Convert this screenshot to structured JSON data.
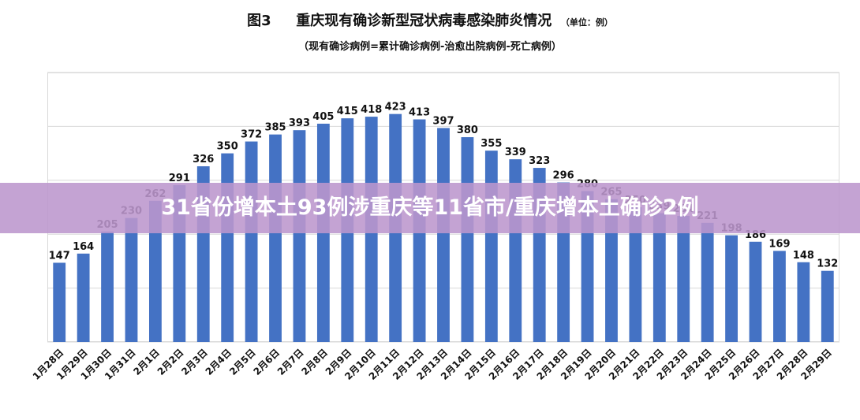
{
  "figure_label": "图3",
  "banner": {
    "text": "31省份增本土93例涉重庆等11省市/重庆增本土确诊2例"
  },
  "colors": {
    "bar": "#4472C4",
    "banner": "#BC96CD",
    "grid": "#d9d9d9"
  },
  "chart_data": {
    "type": "bar",
    "title": "重庆现有确诊新型冠状病毒感染肺炎情况",
    "unit": "（单位：例）",
    "subtitle": "（现有确诊病例=累计确诊病例-治愈出院病例-死亡病例）",
    "xlabel": "",
    "ylabel": "",
    "ylim": [
      0,
      500
    ],
    "grid": true,
    "categories": [
      "1月28日",
      "1月29日",
      "1月30日",
      "1月31日",
      "2月1日",
      "2月2日",
      "2月3日",
      "2月4日",
      "2月5日",
      "2月6日",
      "2月7日",
      "2月8日",
      "2月9日",
      "2月10日",
      "2月11日",
      "2月12日",
      "2月13日",
      "2月14日",
      "2月15日",
      "2月16日",
      "2月17日",
      "2月18日",
      "2月19日",
      "2月20日",
      "2月21日",
      "2月22日",
      "2月23日",
      "2月24日",
      "2月25日",
      "2月26日",
      "2月27日",
      "2月28日",
      "2月29日"
    ],
    "values": [
      147,
      164,
      205,
      230,
      262,
      291,
      326,
      350,
      372,
      385,
      393,
      405,
      415,
      418,
      423,
      413,
      397,
      380,
      355,
      339,
      323,
      296,
      280,
      265,
      250,
      239,
      234,
      221,
      198,
      186,
      169,
      148,
      132
    ]
  }
}
